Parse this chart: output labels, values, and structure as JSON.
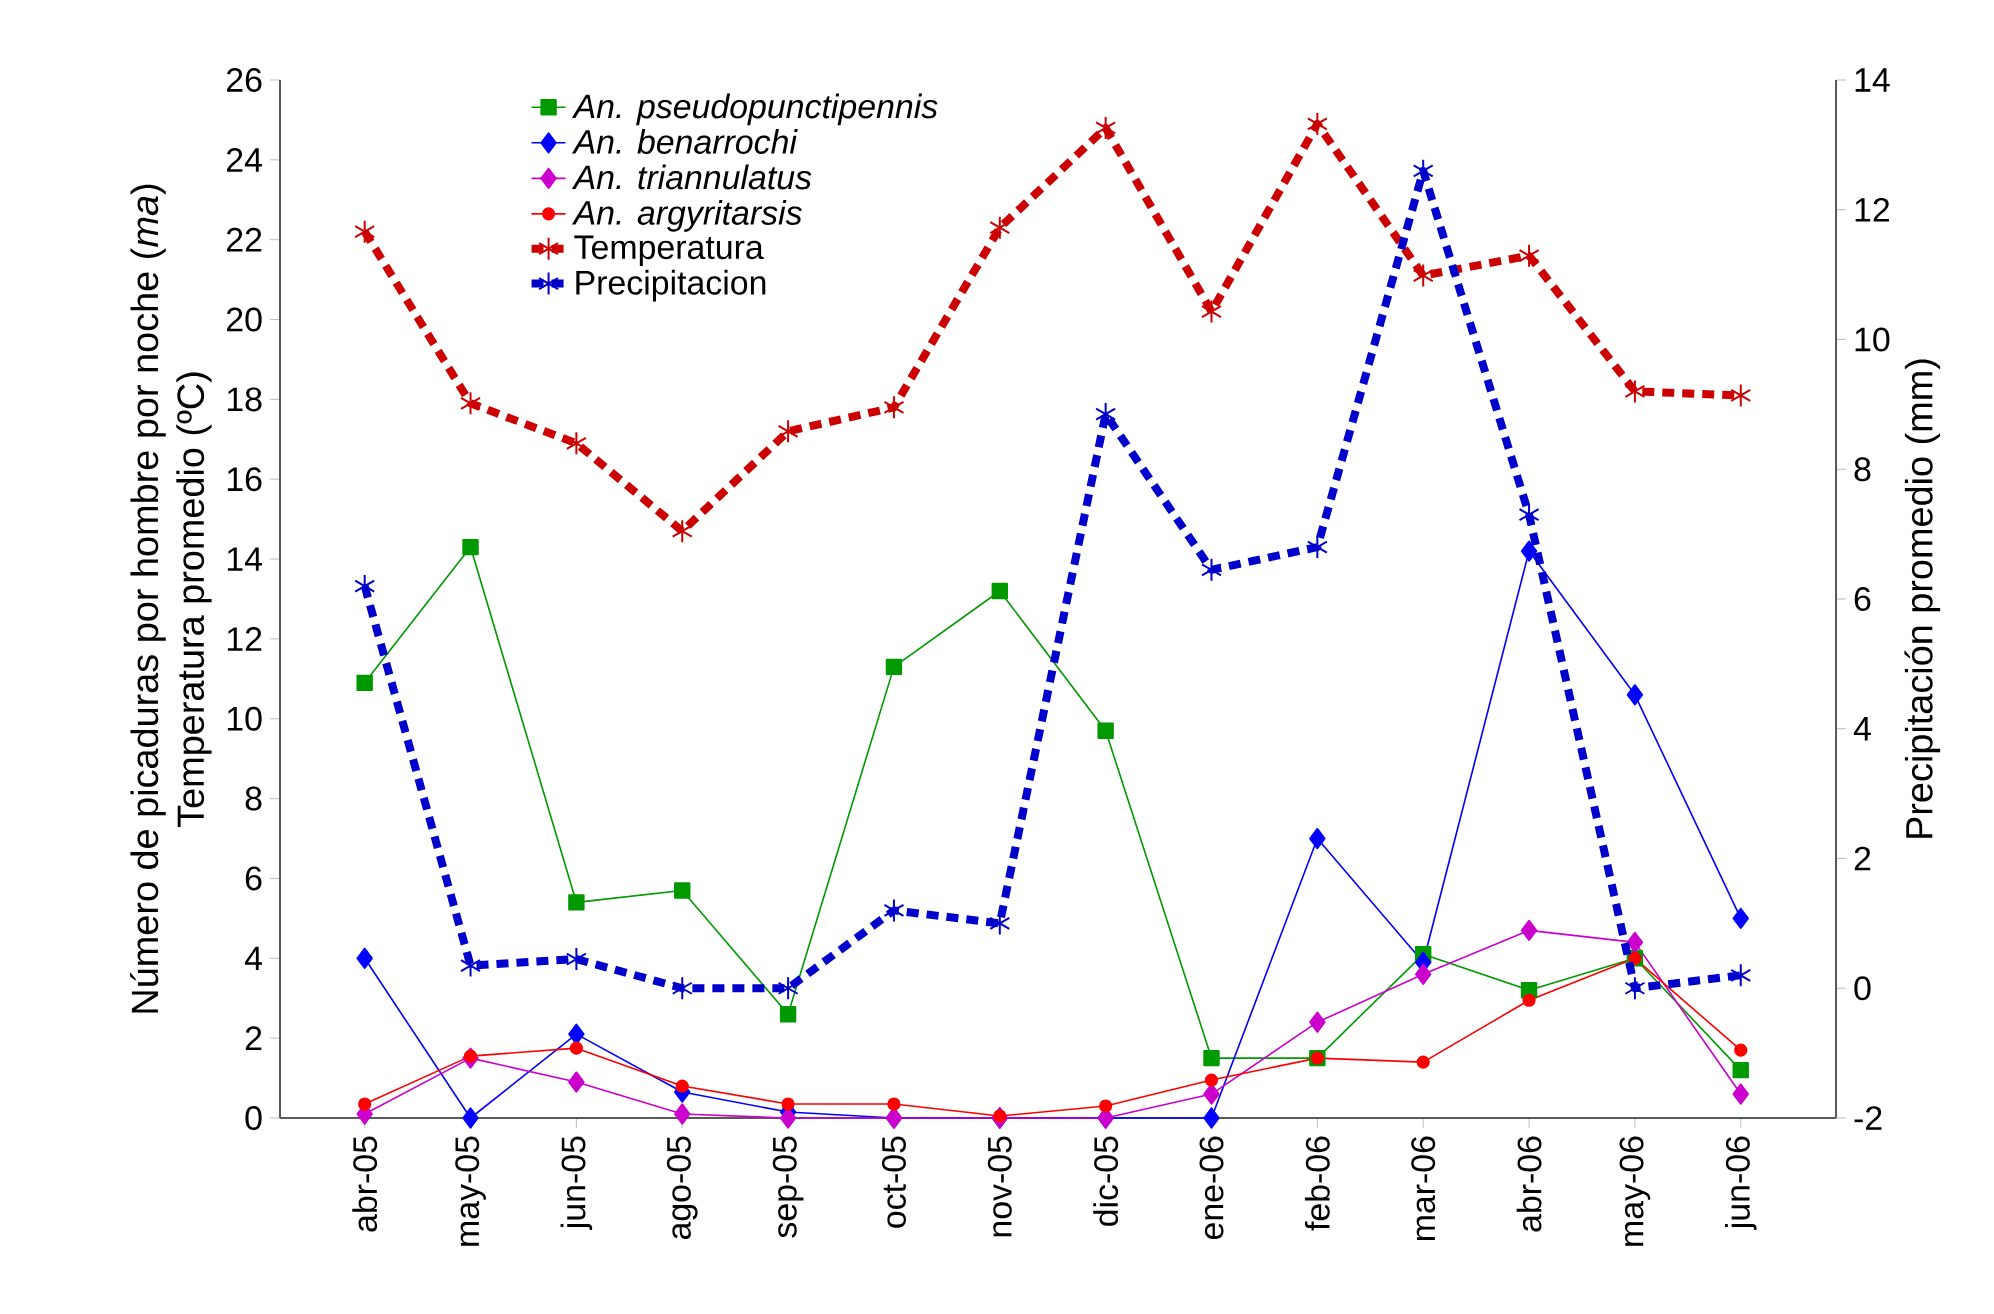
{
  "chart_data": {
    "type": "line",
    "ylabel": [
      "Número de picaduras por hombre por noche (*ma*)",
      "Temperatura promedio (ºC)"
    ],
    "y2label": "Precipitación promedio (mm)",
    "categories": [
      "abr-05",
      "may-05",
      "jun-05",
      "ago-05",
      "sep-05",
      "oct-05",
      "nov-05",
      "dic-05",
      "ene-06",
      "feb-06",
      "mar-06",
      "abr-06",
      "may-06",
      "jun-06"
    ],
    "series": [
      {
        "name": "*An. pseudopunctipennis*",
        "color": "#009900",
        "marker": "square",
        "line_style": "solid",
        "values": [
          10.9,
          14.3,
          5.4,
          5.7,
          2.6,
          11.3,
          13.2,
          9.7,
          1.5,
          1.5,
          4.1,
          3.2,
          4.0,
          1.2
        ]
      },
      {
        "name": "*An. benarrochi*",
        "color": "#0000ff",
        "marker": "diamond",
        "line_style": "solid",
        "values": [
          4.0,
          0,
          2.1,
          0.65,
          0.15,
          0,
          0,
          0,
          0,
          7.0,
          3.9,
          14.2,
          10.6,
          5.0
        ]
      },
      {
        "name": "*An. triannulatus*",
        "color": "#cc00cc",
        "marker": "diamond",
        "line_style": "solid",
        "values": [
          0.1,
          1.5,
          0.9,
          0.1,
          0,
          0,
          0,
          0,
          0.6,
          2.4,
          3.6,
          4.7,
          4.4,
          0.6
        ]
      },
      {
        "name": "*An. argyritarsis*",
        "color": "#ff0000",
        "marker": "circle",
        "line_style": "solid",
        "values": [
          0.35,
          1.55,
          1.75,
          0.8,
          0.35,
          0.35,
          0.05,
          0.3,
          0.95,
          1.5,
          1.4,
          2.95,
          4.0,
          1.7
        ]
      },
      {
        "name": "Temperatura",
        "color": "#cc0000",
        "marker": "cross",
        "line_style": "dashed",
        "values": [
          22.2,
          17.9,
          16.9,
          14.7,
          17.2,
          17.8,
          22.3,
          24.8,
          20.2,
          24.9,
          21.1,
          21.6,
          18.2,
          18.1
        ]
      },
      {
        "name": "Precipitacion",
        "color": "#0000cc",
        "marker": "cross",
        "line_style": "dashed",
        "axis": "y2",
        "values": [
          6.2,
          0.35,
          0.45,
          0.0,
          0.0,
          1.2,
          1.0,
          8.85,
          6.45,
          6.8,
          12.6,
          7.3,
          0.0,
          0.2
        ]
      }
    ],
    "ylim": [
      0,
      26
    ],
    "yticks": [
      0,
      2,
      4,
      6,
      8,
      10,
      12,
      14,
      16,
      18,
      20,
      22,
      24,
      26
    ],
    "y2lim": [
      -2,
      14
    ],
    "y2ticks": [
      -2,
      0,
      2,
      4,
      6,
      8,
      10,
      12,
      14
    ],
    "grid": false,
    "legend": "top left"
  }
}
